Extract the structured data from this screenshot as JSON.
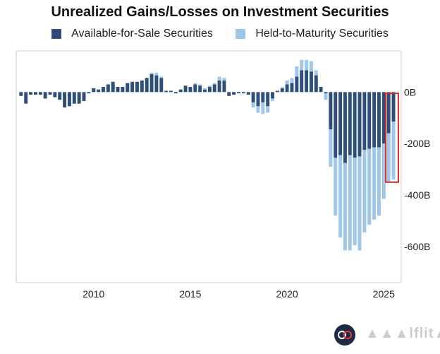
{
  "chart_data": {
    "type": "bar",
    "stacked": true,
    "title": "Unrealized Gains/Losses on Investment Securities",
    "legend": [
      {
        "name": "Available-for-Sale Securities",
        "color": "#2f4f7a"
      },
      {
        "name": "Held-to-Maturity Securities",
        "color": "#9fc7ea"
      }
    ],
    "x_ticks": [
      "2010",
      "2015",
      "2020",
      "2025"
    ],
    "y_ticks": [
      "0B",
      "-200B",
      "-400B",
      "-600B"
    ],
    "ylim": [
      -740,
      160
    ],
    "x_range": [
      2006.0,
      2025.9
    ],
    "series": [
      {
        "name": "Available-for-Sale Securities",
        "x": [
          2006.25,
          2006.5,
          2006.75,
          2007,
          2007.25,
          2007.5,
          2007.75,
          2008,
          2008.25,
          2008.5,
          2008.75,
          2009,
          2009.25,
          2009.5,
          2009.75,
          2010,
          2010.25,
          2010.5,
          2010.75,
          2011,
          2011.25,
          2011.5,
          2011.75,
          2012,
          2012.25,
          2012.5,
          2012.75,
          2013,
          2013.25,
          2013.5,
          2013.75,
          2014,
          2014.25,
          2014.5,
          2014.75,
          2015,
          2015.25,
          2015.5,
          2015.75,
          2016,
          2016.25,
          2016.5,
          2016.75,
          2017,
          2017.25,
          2017.5,
          2017.75,
          2018,
          2018.25,
          2018.5,
          2018.75,
          2019,
          2019.25,
          2019.5,
          2019.75,
          2020,
          2020.25,
          2020.5,
          2020.75,
          2021,
          2021.25,
          2021.5,
          2021.75,
          2022,
          2022.25,
          2022.5,
          2022.75,
          2023,
          2023.25,
          2023.5,
          2023.75,
          2024,
          2024.25,
          2024.5,
          2024.75,
          2025,
          2025.25,
          2025.5
        ],
        "values": [
          -15,
          -45,
          -10,
          -10,
          -10,
          -25,
          -10,
          -20,
          -30,
          -60,
          -55,
          -45,
          -45,
          -35,
          -5,
          15,
          10,
          20,
          30,
          40,
          20,
          20,
          35,
          40,
          40,
          45,
          55,
          70,
          65,
          55,
          5,
          5,
          -5,
          10,
          25,
          20,
          30,
          25,
          10,
          20,
          30,
          45,
          45,
          -15,
          -10,
          -5,
          -5,
          -10,
          -40,
          -55,
          -40,
          -55,
          -25,
          5,
          15,
          30,
          35,
          60,
          85,
          85,
          80,
          65,
          20,
          -5,
          -145,
          -255,
          -245,
          -275,
          -245,
          -255,
          -250,
          -225,
          -220,
          -215,
          -215,
          -200,
          -160,
          -115
        ]
      },
      {
        "name": "Held-to-Maturity Securities",
        "x": [
          2006.25,
          2006.5,
          2006.75,
          2007,
          2007.25,
          2007.5,
          2007.75,
          2008,
          2008.25,
          2008.5,
          2008.75,
          2009,
          2009.25,
          2009.5,
          2009.75,
          2010,
          2010.25,
          2010.5,
          2010.75,
          2011,
          2011.25,
          2011.5,
          2011.75,
          2012,
          2012.25,
          2012.5,
          2012.75,
          2013,
          2013.25,
          2013.5,
          2013.75,
          2014,
          2014.25,
          2014.5,
          2014.75,
          2015,
          2015.25,
          2015.5,
          2015.75,
          2016,
          2016.25,
          2016.5,
          2016.75,
          2017,
          2017.25,
          2017.5,
          2017.75,
          2018,
          2018.25,
          2018.5,
          2018.75,
          2019,
          2019.25,
          2019.5,
          2019.75,
          2020,
          2020.25,
          2020.5,
          2020.75,
          2021,
          2021.25,
          2021.5,
          2021.75,
          2022,
          2022.25,
          2022.5,
          2022.75,
          2023,
          2023.25,
          2023.5,
          2023.75,
          2024,
          2024.25,
          2024.5,
          2024.75,
          2025,
          2025.25,
          2025.5
        ],
        "values": [
          0,
          0,
          0,
          0,
          0,
          0,
          0,
          0,
          0,
          0,
          0,
          0,
          0,
          0,
          0,
          0,
          0,
          0,
          0,
          0,
          0,
          0,
          0,
          0,
          0,
          0,
          0,
          5,
          10,
          5,
          0,
          0,
          0,
          0,
          0,
          0,
          5,
          5,
          5,
          5,
          5,
          15,
          10,
          0,
          0,
          0,
          0,
          0,
          -20,
          -25,
          -45,
          -25,
          -10,
          0,
          5,
          15,
          20,
          40,
          40,
          40,
          40,
          20,
          0,
          -25,
          -145,
          -225,
          -320,
          -340,
          -370,
          -340,
          -365,
          -320,
          -295,
          -280,
          -265,
          -215,
          -190,
          -225
        ]
      }
    ],
    "highlight": {
      "x_start": 2025.1,
      "x_end": 2025.75,
      "y_top": -5,
      "y_bottom": -350,
      "color": "#d42a2a"
    }
  },
  "brand": {
    "name": "▲▲▲lflit▲"
  }
}
